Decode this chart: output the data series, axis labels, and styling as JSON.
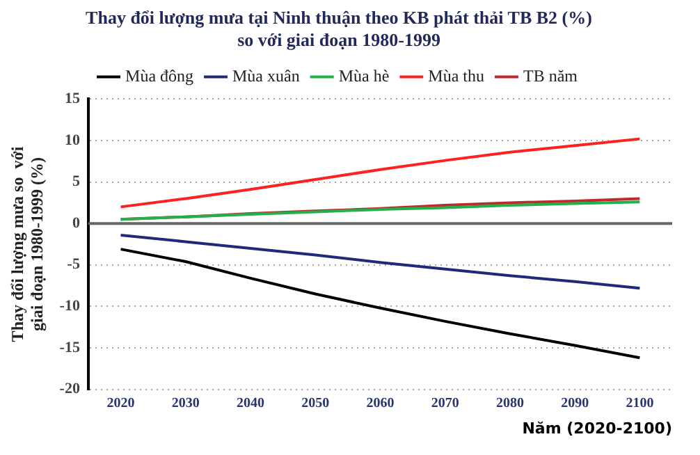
{
  "chart_data": {
    "type": "line",
    "title": "Thay đổi lượng mưa tại Ninh thuận theo KB phát thải TB B2 (%)\nso với giai đoạn 1980-1999",
    "xlabel": "Năm (2020-2100)",
    "ylabel": "Thay đổi lượng mưa so  với giai đoạn 1980-1999 (%)",
    "categories": [
      "2020",
      "2030",
      "2040",
      "2050",
      "2060",
      "2070",
      "2080",
      "2090",
      "2100"
    ],
    "series": [
      {
        "name": "Mùa đông",
        "color": "#000000",
        "values": [
          -3.1,
          -4.6,
          -6.6,
          -8.5,
          -10.2,
          -11.8,
          -13.3,
          -14.7,
          -16.2
        ]
      },
      {
        "name": "Mùa xuân",
        "color": "#1f2a7a",
        "values": [
          -1.4,
          -2.2,
          -3.0,
          -3.8,
          -4.7,
          -5.5,
          -6.3,
          -7.0,
          -7.8
        ]
      },
      {
        "name": "Mùa hè",
        "color": "#22b04a",
        "values": [
          0.5,
          0.8,
          1.1,
          1.4,
          1.7,
          1.9,
          2.2,
          2.4,
          2.6
        ]
      },
      {
        "name": "Mùa thu",
        "color": "#ff2020",
        "values": [
          2.0,
          3.0,
          4.1,
          5.3,
          6.5,
          7.6,
          8.6,
          9.4,
          10.2
        ]
      },
      {
        "name": "TB năm",
        "color": "#c0282d",
        "values": [
          0.5,
          0.8,
          1.2,
          1.5,
          1.8,
          2.2,
          2.5,
          2.7,
          3.0
        ]
      }
    ],
    "ref_lines": [
      {
        "axis": "y",
        "value": 0,
        "color": "#666666",
        "line_style": "solid"
      }
    ],
    "ylim": [
      -20,
      15
    ],
    "yticks": [
      -20,
      -15,
      -10,
      -5,
      0,
      5,
      10,
      15
    ],
    "grid": "y",
    "legend": "top",
    "marker": "none",
    "line_style": "solid"
  }
}
